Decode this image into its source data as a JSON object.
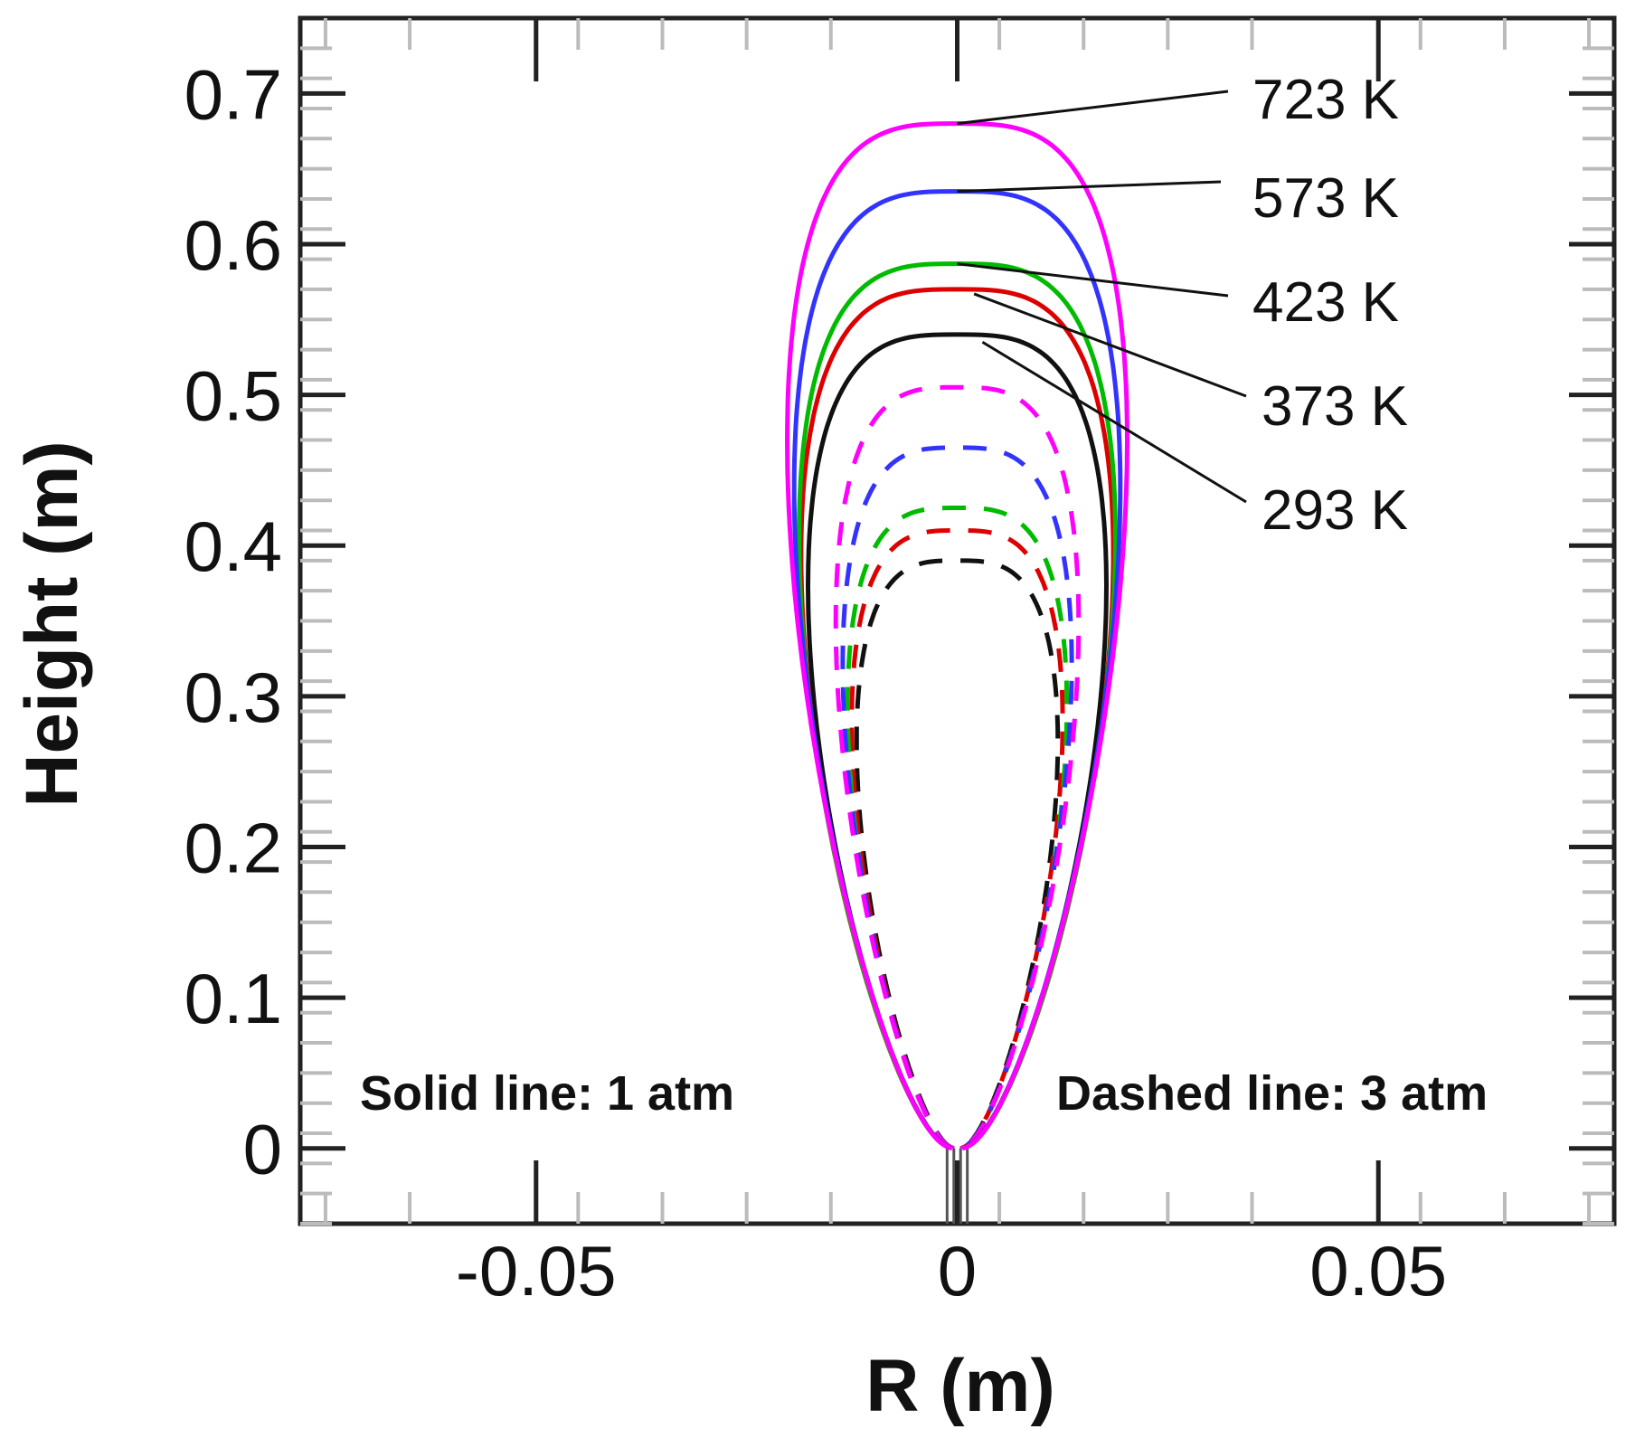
{
  "chart_data": {
    "type": "line",
    "title": "",
    "xlabel": "R (m)",
    "ylabel": "Height (m)",
    "xlim": [
      -0.078,
      0.078
    ],
    "ylim": [
      -0.05,
      0.75
    ],
    "xticks": [
      -0.05,
      0,
      0.05
    ],
    "xtick_labels": [
      "-0.05",
      "0",
      "0.05"
    ],
    "yticks": [
      0,
      0.1,
      0.2,
      0.3,
      0.4,
      0.5,
      0.6,
      0.7
    ],
    "ytick_labels": [
      "0",
      "0.1",
      "0.2",
      "0.3",
      "0.4",
      "0.5",
      "0.6",
      "0.7"
    ],
    "grid": false,
    "notes": {
      "solid": "Solid line: 1 atm",
      "dashed": "Dashed line: 3 atm"
    },
    "series": [
      {
        "name": "723 K",
        "pressure": "1 atm",
        "style": "solid",
        "color": "#ff00ff",
        "peak_height": 0.68,
        "half_width": 0.0245
      },
      {
        "name": "573 K",
        "pressure": "1 atm",
        "style": "solid",
        "color": "#3333ff",
        "peak_height": 0.635,
        "half_width": 0.0235
      },
      {
        "name": "423 K",
        "pressure": "1 atm",
        "style": "solid",
        "color": "#00bb00",
        "peak_height": 0.587,
        "half_width": 0.0228
      },
      {
        "name": "373 K",
        "pressure": "1 atm",
        "style": "solid",
        "color": "#dd0000",
        "peak_height": 0.57,
        "half_width": 0.0225
      },
      {
        "name": "293 K",
        "pressure": "1 atm",
        "style": "solid",
        "color": "#111111",
        "peak_height": 0.54,
        "half_width": 0.0215
      },
      {
        "name": "723 K",
        "pressure": "3 atm",
        "style": "dashed",
        "color": "#ff00ff",
        "peak_height": 0.505,
        "half_width": 0.0175
      },
      {
        "name": "573 K",
        "pressure": "3 atm",
        "style": "dashed",
        "color": "#3333ff",
        "peak_height": 0.465,
        "half_width": 0.0165
      },
      {
        "name": "423 K",
        "pressure": "3 atm",
        "style": "dashed",
        "color": "#00bb00",
        "peak_height": 0.425,
        "half_width": 0.0158
      },
      {
        "name": "373 K",
        "pressure": "3 atm",
        "style": "dashed",
        "color": "#dd0000",
        "peak_height": 0.41,
        "half_width": 0.0152
      },
      {
        "name": "293 K",
        "pressure": "3 atm",
        "style": "dashed",
        "color": "#111111",
        "peak_height": 0.39,
        "half_width": 0.0145
      }
    ],
    "annotations": [
      {
        "text": "723 K",
        "points_to": [
          0,
          0.68
        ]
      },
      {
        "text": "573 K",
        "points_to": [
          0,
          0.635
        ]
      },
      {
        "text": "423 K",
        "points_to": [
          0,
          0.587
        ]
      },
      {
        "text": "373 K",
        "points_to": [
          0.002,
          0.567
        ]
      },
      {
        "text": "293 K",
        "points_to": [
          0.003,
          0.535
        ]
      }
    ]
  }
}
